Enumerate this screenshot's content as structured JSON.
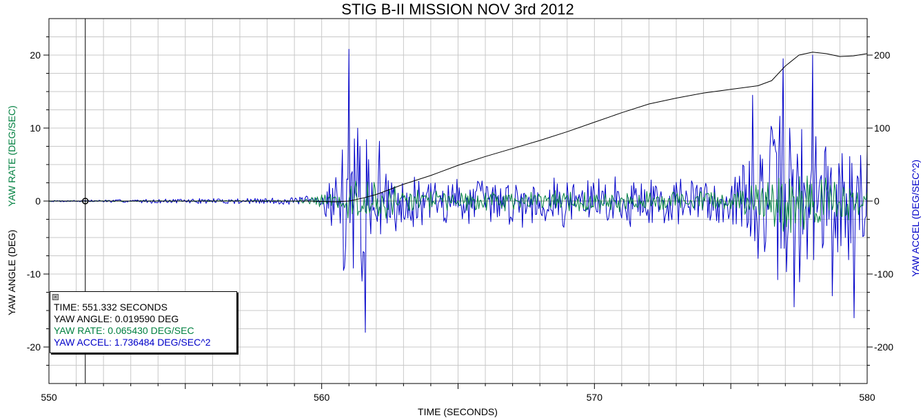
{
  "chart_data": {
    "type": "line",
    "title": "STIG B-II MISSION NOV 3rd 2012",
    "xlabel": "TIME (SECONDS)",
    "ylabel_left_1": "YAW ANGLE (DEG)",
    "ylabel_left_2": "YAW RATE (DEG/SEC)",
    "ylabel_right": "YAW ACCEL (DEG/SEC^2)",
    "xlim": [
      550,
      580
    ],
    "ylim_left": [
      -25,
      25
    ],
    "ylim_right": [
      -250,
      250
    ],
    "x_ticks": [
      "550",
      "560",
      "570",
      "580"
    ],
    "y_left_ticks": [
      "20",
      "10",
      "0",
      "-10",
      "-20"
    ],
    "y_right_ticks": [
      "200",
      "100",
      "0",
      "-100",
      "-200"
    ],
    "grid": true,
    "cursor_time": 551.332,
    "series": [
      {
        "name": "YAW ANGLE",
        "axis": "left",
        "color": "#000000",
        "points": [
          [
            550,
            0
          ],
          [
            559.5,
            0
          ],
          [
            560.5,
            -0.1
          ],
          [
            561,
            0
          ],
          [
            561.5,
            0.4
          ],
          [
            562,
            0.9
          ],
          [
            563,
            2.3
          ],
          [
            564,
            3.5
          ],
          [
            565,
            4.9
          ],
          [
            566,
            6.1
          ],
          [
            567,
            7.2
          ],
          [
            568,
            8.3
          ],
          [
            569,
            9.5
          ],
          [
            570,
            10.8
          ],
          [
            571,
            12.1
          ],
          [
            572,
            13.3
          ],
          [
            573,
            14.1
          ],
          [
            574,
            14.8
          ],
          [
            575,
            15.3
          ],
          [
            576,
            15.8
          ],
          [
            576.5,
            16.5
          ],
          [
            577,
            18.5
          ],
          [
            577.5,
            20.0
          ],
          [
            578,
            20.4
          ],
          [
            578.5,
            20.2
          ],
          [
            579,
            19.8
          ],
          [
            579.5,
            19.9
          ],
          [
            580,
            20.2
          ]
        ]
      },
      {
        "name": "YAW RATE",
        "axis": "left",
        "color": "#008040",
        "amplitude_profile": [
          [
            550,
            0.05
          ],
          [
            559,
            0.1
          ],
          [
            560.5,
            1.5
          ],
          [
            561,
            3
          ],
          [
            562,
            3
          ],
          [
            563,
            2
          ],
          [
            566,
            1.5
          ],
          [
            570,
            1.6
          ],
          [
            575,
            1.6
          ],
          [
            576,
            3
          ],
          [
            577,
            6
          ],
          [
            578,
            4
          ],
          [
            579.5,
            3
          ],
          [
            580,
            2
          ]
        ]
      },
      {
        "name": "YAW ACCEL",
        "axis": "right",
        "color": "#0000c8",
        "amplitude_profile": [
          [
            550,
            1
          ],
          [
            559,
            6
          ],
          [
            560,
            10
          ],
          [
            560.5,
            60
          ],
          [
            561,
            130
          ],
          [
            561.5,
            120
          ],
          [
            562,
            55
          ],
          [
            563,
            40
          ],
          [
            566,
            35
          ],
          [
            570,
            40
          ],
          [
            575,
            38
          ],
          [
            576,
            90
          ],
          [
            577,
            150
          ],
          [
            578,
            110
          ],
          [
            579.5,
            100
          ],
          [
            580,
            60
          ]
        ],
        "spikes": [
          [
            560.8,
            -95
          ],
          [
            561,
            208
          ],
          [
            561.3,
            100
          ],
          [
            561.6,
            -180
          ],
          [
            562.1,
            82
          ],
          [
            575.8,
            145
          ],
          [
            576.9,
            195
          ],
          [
            577.3,
            -145
          ],
          [
            578,
            200
          ],
          [
            578.7,
            -130
          ],
          [
            579.2,
            -50
          ],
          [
            579.5,
            -160
          ],
          [
            580,
            70
          ]
        ]
      }
    ]
  },
  "readout": {
    "time": "TIME: 551.332 SECONDS",
    "angle": "YAW ANGLE: 0.019590 DEG",
    "rate": "YAW RATE: 0.065430 DEG/SEC",
    "accel": "YAW ACCEL: 1.736484 DEG/SEC^2",
    "close_glyph": "×"
  },
  "colors": {
    "angle": "#000000",
    "rate": "#008040",
    "accel": "#0000c8",
    "grid": "#c8c8c8"
  }
}
